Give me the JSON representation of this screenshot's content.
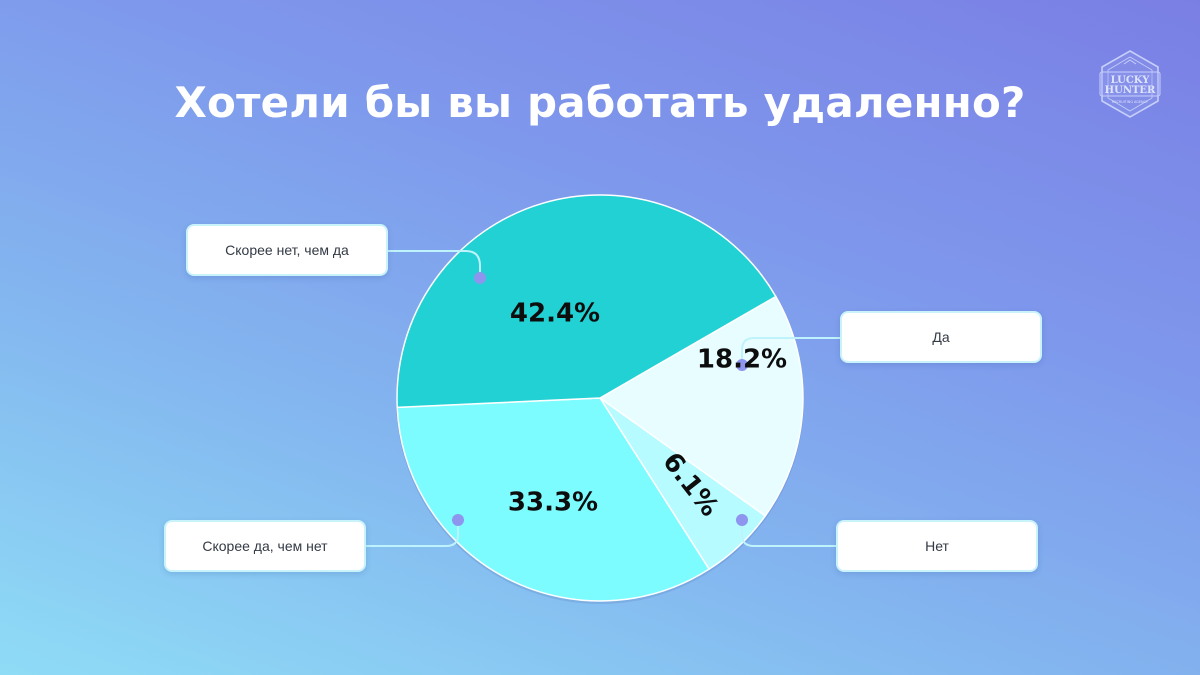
{
  "chart_data": {
    "type": "pie",
    "title": "Хотели бы вы работать удаленно?",
    "slices": [
      {
        "label": "Да",
        "value": 18.2,
        "value_label": "18.2%",
        "color": "#e8fdff"
      },
      {
        "label": "Нет",
        "value": 6.1,
        "value_label": "6.1%",
        "color": "#b6fbff"
      },
      {
        "label": "Скорее да, чем нет",
        "value": 33.3,
        "value_label": "33.3%",
        "color": "#7dfcff"
      },
      {
        "label": "Скорее нет, чем да",
        "value": 42.4,
        "value_label": "42.4%",
        "color": "#22d1d3"
      }
    ],
    "start_angle_deg": -30,
    "direction": "clockwise",
    "legend": "callout boxes beside slices"
  },
  "logo": {
    "lines": [
      "LUCKY",
      "HUNTER"
    ],
    "tagline": "RECRUITING AGENCY"
  },
  "colors": {
    "connector": "#bff3fb",
    "marker": "#8e95ee",
    "value_text": "#0d0d0d",
    "stroke": "#ffffff"
  }
}
